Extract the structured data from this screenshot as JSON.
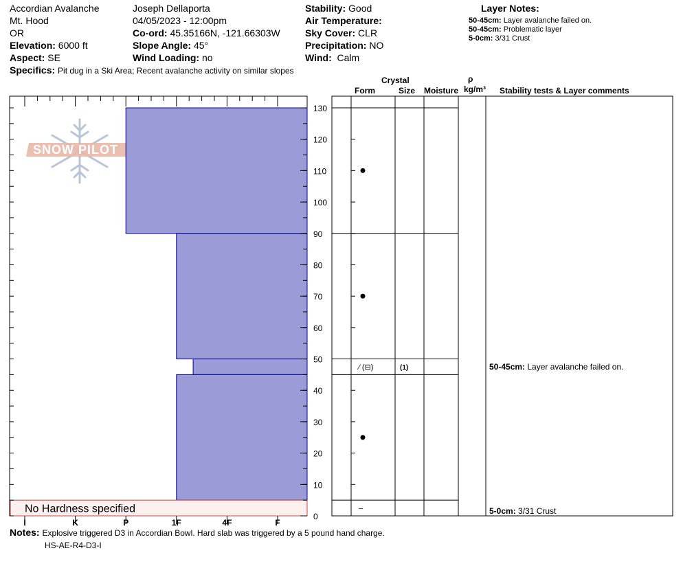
{
  "header": {
    "col1": {
      "location": "Accordian Avalanche",
      "range": "Mt. Hood",
      "state": "OR",
      "elevation_label": "Elevation:",
      "elevation_value": "6000 ft",
      "aspect_label": "Aspect:",
      "aspect_value": "SE"
    },
    "col2": {
      "observer": "Joseph Dellaporta",
      "datetime": "04/05/2023 - 12:00pm",
      "coord_label": "Co-ord:",
      "coord_value": "45.35166N, -121.66303W",
      "slope_label": "Slope Angle:",
      "slope_value": "45°",
      "wind_loading_label": "Wind Loading:",
      "wind_loading_value": "no"
    },
    "col3": {
      "stability_label": "Stability:",
      "stability_value": "Good",
      "air_temp_label": "Air Temperature:",
      "air_temp_value": "",
      "sky_label": "Sky Cover:",
      "sky_value": "CLR",
      "precip_label": "Precipitation:",
      "precip_value": "NO",
      "wind_label": "Wind:",
      "wind_value": "Calm"
    },
    "specifics_label": "Specifics:",
    "specifics_value": "Pit dug in a Ski Area; Recent avalanche activity on similar slopes"
  },
  "layer_notes": {
    "title": "Layer Notes:",
    "items": [
      {
        "range": "50-45cm:",
        "text": "Layer avalanche failed on."
      },
      {
        "range": "50-45cm:",
        "text": "Problematic layer"
      },
      {
        "range": "5-0cm:",
        "text": "3/31 Crust"
      }
    ]
  },
  "logo": {
    "text": "SNOW PILOT"
  },
  "table_headers": {
    "crystal": "Crystal",
    "form": "Form",
    "size": "Size",
    "moisture": "Moisture",
    "rho": "ρ",
    "density_unit": "kg/m³",
    "comments": "Stability tests & Layer comments"
  },
  "no_hardness": "No Hardness specified",
  "notes": {
    "label": "Notes:",
    "text": "Explosive triggered D3 in Accordian Bowl. Hard slab was triggered by a 5 pound hand charge.",
    "code": "HS-AE-R4-D3-I"
  },
  "chart_data": {
    "type": "bar",
    "orientation": "horizontal",
    "y_axis": {
      "label": "",
      "min": 0,
      "max": 130,
      "ticks": [
        0,
        10,
        20,
        30,
        40,
        50,
        60,
        70,
        80,
        90,
        100,
        110,
        120,
        130
      ]
    },
    "x_axis": {
      "ticks": [
        "I",
        "K",
        "P",
        "1F",
        "4F",
        "F"
      ],
      "direction": "reversed"
    },
    "fill_color": "#9b9bd7",
    "edge_color": "#00008b",
    "no_hardness_fill": "#fff0f0",
    "no_hardness_edge": "#d04040",
    "layers": [
      {
        "top": 130,
        "bottom": 90,
        "hardness_index": 2.0,
        "form": "•",
        "size": "",
        "moisture": ""
      },
      {
        "top": 90,
        "bottom": 50,
        "hardness_index": 3.0,
        "form": "•",
        "size": "",
        "moisture": ""
      },
      {
        "top": 50,
        "bottom": 45,
        "hardness_index": 3.33,
        "form": "⁄ (⊟)",
        "size": "(1)",
        "moisture": ""
      },
      {
        "top": 45,
        "bottom": 5,
        "hardness_index": 3.0,
        "form": "•",
        "size": "",
        "moisture": ""
      },
      {
        "top": 5,
        "bottom": 0,
        "hardness_index": null,
        "form": "–",
        "size": "",
        "moisture": ""
      }
    ],
    "comments": [
      {
        "depth": 47.5,
        "range": "50-45cm:",
        "text": "Layer avalanche failed on."
      },
      {
        "depth": 0,
        "range": "5-0cm:",
        "text": "3/31 Crust"
      }
    ]
  }
}
